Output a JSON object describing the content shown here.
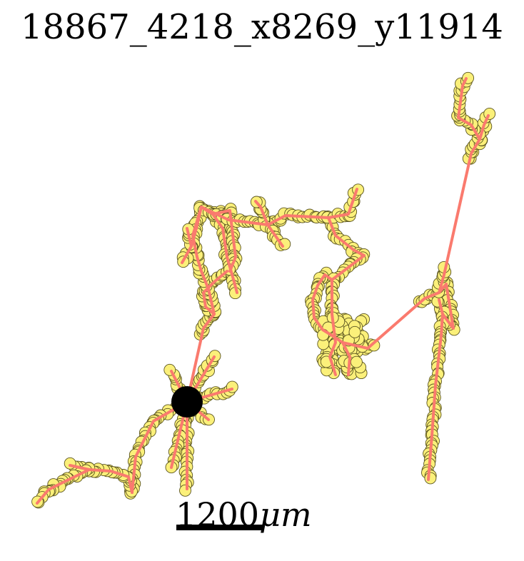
{
  "title": "18867_4218_x8269_y11914",
  "scalebar": {
    "value": "1200",
    "unit": "μm"
  },
  "colors": {
    "branch_line": "#fa7a6e",
    "node_fill": "#fbf07a",
    "node_stroke": "#5a5420",
    "soma": "#000000"
  }
}
